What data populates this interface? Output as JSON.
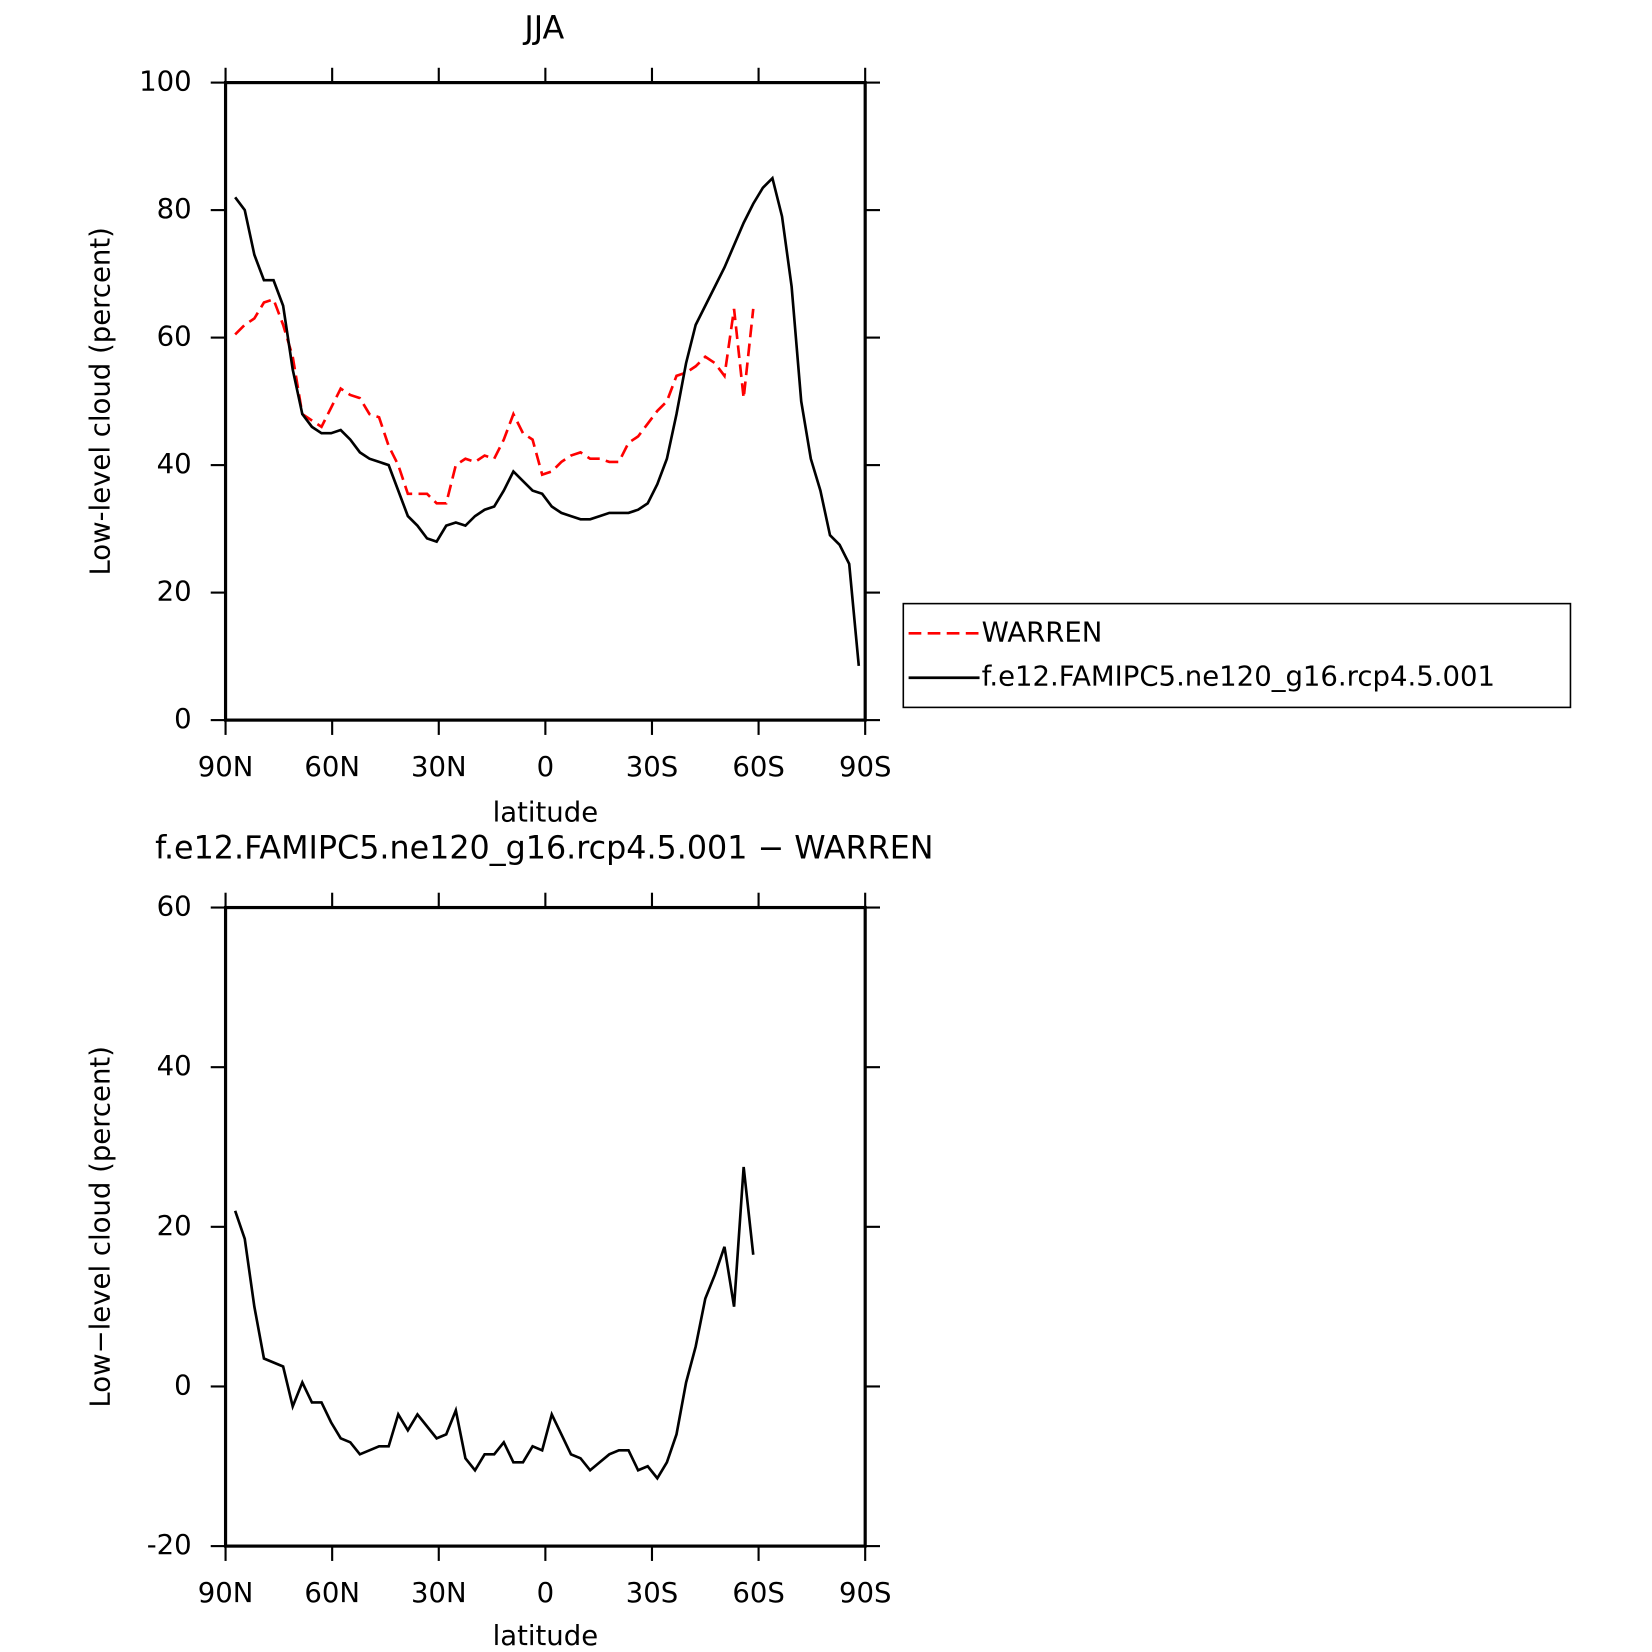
{
  "chart_data": [
    {
      "type": "line",
      "title": "JJA",
      "xlabel": "latitude",
      "ylabel": "Low-level cloud (percent)",
      "x": [
        87.3,
        84.6,
        81.9,
        79.2,
        76.5,
        73.8,
        71.1,
        68.4,
        65.7,
        63,
        60.3,
        57.6,
        54.9,
        52.2,
        49.5,
        46.8,
        44.1,
        41.4,
        38.7,
        36,
        33.3,
        30.6,
        27.9,
        25.2,
        22.5,
        19.8,
        17.1,
        14.4,
        11.7,
        9,
        6.3,
        3.6,
        0.9,
        -1.8,
        -4.5,
        -7.2,
        -9.9,
        -12.6,
        -15.3,
        -18,
        -20.7,
        -23.4,
        -26.1,
        -28.8,
        -31.5,
        -34.2,
        -36.9,
        -39.6,
        -42.3,
        -45,
        -47.7,
        -50.4,
        -53.1,
        -55.8,
        -58.5,
        -61.2,
        -63.9,
        -66.6,
        -69.3,
        -72,
        -74.7,
        -77.4,
        -80.1,
        -82.8,
        -85.5,
        -88.2
      ],
      "series": [
        {
          "name": "WARREN",
          "color": "#ff0000",
          "dashed": true,
          "values": [
            60.5,
            62,
            63,
            65.5,
            66,
            62,
            57,
            48,
            47,
            46,
            49,
            52,
            51,
            50.5,
            48,
            47.5,
            43,
            40,
            35.5,
            35.5,
            35.5,
            34,
            34,
            40,
            41,
            40.5,
            41.5,
            41,
            44,
            48,
            45,
            44,
            38.5,
            39,
            40.5,
            41.5,
            42,
            41,
            41,
            40.5,
            40.5,
            43.5,
            44.5,
            46.5,
            48.5,
            50,
            54,
            54.5,
            55.5,
            57,
            56,
            54,
            64.5,
            50.5,
            64.5,
            null,
            null,
            null,
            null,
            null,
            null,
            null,
            null,
            null,
            null,
            null
          ]
        },
        {
          "name": "f.e12.FAMIPC5.ne120_g16.rcp4.5.001",
          "color": "#000000",
          "dashed": false,
          "values": [
            82,
            80,
            73,
            69,
            69,
            65,
            55,
            48,
            46,
            45,
            45,
            45.5,
            44,
            42,
            41,
            40.5,
            40,
            36,
            32,
            30.5,
            28.5,
            28,
            30.5,
            31,
            30.5,
            32,
            33,
            33.5,
            36,
            39,
            37.5,
            36,
            35.5,
            33.5,
            32.5,
            32,
            31.5,
            31.5,
            32,
            32.5,
            32.5,
            32.5,
            33,
            34,
            37,
            41,
            48,
            56,
            62,
            65,
            68,
            71,
            74.5,
            78,
            81,
            83.5,
            85,
            79,
            68,
            50,
            41,
            36,
            29,
            27.5,
            24.5,
            8.5
          ]
        }
      ],
      "xlim": [
        90,
        -90
      ],
      "xticks": [
        {
          "value": 90,
          "label": "90N"
        },
        {
          "value": 60,
          "label": "60N"
        },
        {
          "value": 30,
          "label": "30N"
        },
        0,
        {
          "value": -30,
          "label": "30S"
        },
        {
          "value": -60,
          "label": "60S"
        },
        {
          "value": -90,
          "label": "90S"
        }
      ],
      "ylim": [
        0,
        100
      ],
      "yticks": [
        0,
        20,
        40,
        60,
        80,
        100
      ],
      "legend": "right"
    },
    {
      "type": "line",
      "title": "f.e12.FAMIPC5.ne120_g16.rcp4.5.001 − WARREN",
      "xlabel": "latitude",
      "ylabel": "Low−level cloud (percent)",
      "x": [
        87.3,
        84.6,
        81.9,
        79.2,
        76.5,
        73.8,
        71.1,
        68.4,
        65.7,
        63,
        60.3,
        57.6,
        54.9,
        52.2,
        49.5,
        46.8,
        44.1,
        41.4,
        38.7,
        36,
        33.3,
        30.6,
        27.9,
        25.2,
        22.5,
        19.8,
        17.1,
        14.4,
        11.7,
        9,
        6.3,
        3.6,
        0.9,
        -1.8,
        -4.5,
        -7.2,
        -9.9,
        -12.6,
        -15.3,
        -18,
        -20.7,
        -23.4,
        -26.1,
        -28.8,
        -31.5,
        -34.2,
        -36.9,
        -39.6,
        -42.3,
        -45,
        -47.7,
        -50.4,
        -53.1,
        -55.8,
        -58.5,
        -61.2,
        -63.9,
        -66.6,
        -69.3,
        -72,
        -74.7,
        -77.4,
        -80.1,
        -82.8,
        -85.5,
        -88.2
      ],
      "color": "#000000",
      "values": [
        22,
        18.5,
        10,
        3.5,
        3,
        2.5,
        -2.5,
        0.5,
        -2,
        -2,
        -4.5,
        -6.5,
        -7,
        -8.5,
        -8,
        -7.5,
        -7.5,
        -3.5,
        -5.5,
        -3.5,
        -5,
        -6.5,
        -6,
        -3,
        -9,
        -10.5,
        -8.5,
        -8.5,
        -7,
        -9.5,
        -9.5,
        -7.5,
        -8,
        -3.5,
        -6,
        -8.5,
        -9,
        -10.5,
        -9.5,
        -8.5,
        -8,
        -8,
        -10.5,
        -10,
        -11.5,
        -9.5,
        -6,
        0.5,
        5,
        11,
        14,
        17.5,
        10,
        27.5,
        16.5,
        null,
        null,
        null,
        null,
        null,
        null,
        null,
        null,
        null,
        null,
        null
      ],
      "xlim": [
        90,
        -90
      ],
      "xticks": [
        {
          "value": 90,
          "label": "90N"
        },
        {
          "value": 60,
          "label": "60N"
        },
        {
          "value": 30,
          "label": "30N"
        },
        0,
        {
          "value": -30,
          "label": "30S"
        },
        {
          "value": -60,
          "label": "60S"
        },
        {
          "value": -90,
          "label": "90S"
        }
      ],
      "ylim": [
        -20,
        60
      ],
      "yticks": [
        -20,
        0,
        20,
        40,
        60
      ]
    }
  ]
}
